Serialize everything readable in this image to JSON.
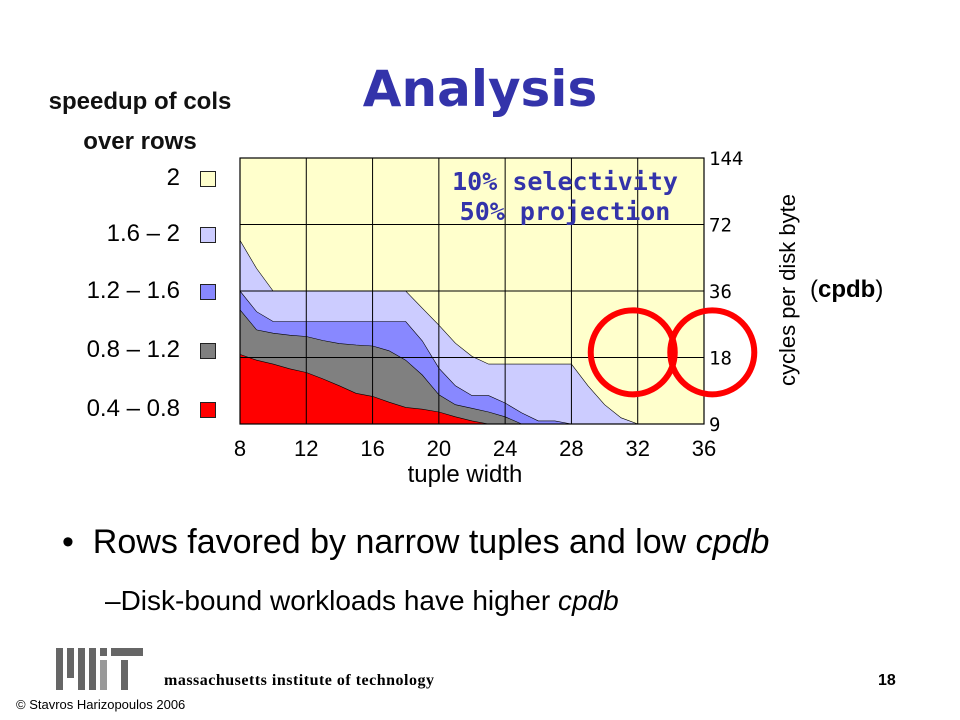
{
  "slide": {
    "title": "Analysis",
    "bullet1": "Rows favored by narrow tuples and low ",
    "bullet1_em": "cpdb",
    "bullet2_dash": "–",
    "bullet2": "Disk-bound workloads have higher ",
    "bullet2_em": "cpdb",
    "footer": "massachusetts institute of technology",
    "page_number": "18",
    "copyright": "© Stavros Harizopoulos 2006",
    "logo_text": "MIT"
  },
  "chart_data": {
    "type": "area",
    "title_line1": "10% selectivity",
    "title_line2": "50% projection",
    "xlabel": "tuple width",
    "ylabel": "cycles per disk byte",
    "ylabel_suffix_open": "(",
    "ylabel_suffix_bold": "cpdb",
    "ylabel_suffix_close": ")",
    "legend_title": "speedup of cols over rows",
    "x_ticks": [
      "8",
      "12",
      "16",
      "20",
      "24",
      "28",
      "32",
      "36"
    ],
    "y_ticks": [
      "144",
      "72",
      "36",
      "18",
      "9"
    ],
    "y_scale": "log2",
    "xlim": [
      8,
      36
    ],
    "ylim": [
      9,
      144
    ],
    "grid": true,
    "legend": [
      {
        "label": "2",
        "color": "#ffffcc"
      },
      {
        "label": "1.6 – 2",
        "color": "#ccccff"
      },
      {
        "label": "1.2 – 1.6",
        "color": "#8888ff"
      },
      {
        "label": "0.8 – 1.2",
        "color": "#808080"
      },
      {
        "label": "0.4 – 0.8",
        "color": "#ff0000"
      }
    ],
    "background_color": "#ffffcc",
    "x": [
      8,
      9,
      10,
      11,
      12,
      13,
      14,
      15,
      16,
      17,
      18,
      19,
      20,
      21,
      22,
      23,
      24,
      25,
      26,
      27,
      28,
      29,
      30,
      31,
      32
    ],
    "boundaries": [
      {
        "name": "0.4 – 0.8",
        "color": "#ff0000",
        "values": [
          18.6,
          17.5,
          16.8,
          16.0,
          15.4,
          14.4,
          13.4,
          12.4,
          12.0,
          11.3,
          10.7,
          10.5,
          10.2,
          9.7,
          9.3,
          9.0,
          9.0,
          9.0,
          9.0,
          9.0,
          9.0,
          9.0,
          9.0,
          9.0,
          9.0
        ]
      },
      {
        "name": "0.8 – 1.2",
        "color": "#808080",
        "values": [
          29.6,
          24.0,
          23.2,
          22.7,
          22.4,
          21.5,
          20.8,
          20.5,
          20.3,
          19.3,
          17.5,
          15.0,
          12.2,
          11.0,
          10.6,
          10.2,
          9.7,
          9.0,
          9.0,
          9.0,
          9.0,
          9.0,
          9.0,
          9.0,
          9.0
        ]
      },
      {
        "name": "1.2 – 1.6",
        "color": "#8888ff",
        "values": [
          36.0,
          29.0,
          26.2,
          26.2,
          26.2,
          26.2,
          26.2,
          26.2,
          26.2,
          26.2,
          26.2,
          21.4,
          16.1,
          13.4,
          12.1,
          12.1,
          11.2,
          10.1,
          9.3,
          9.3,
          9.0,
          9.0,
          9.0,
          9.0,
          9.0
        ]
      },
      {
        "name": "1.6 – 2",
        "color": "#ccccff",
        "values": [
          61.0,
          45.5,
          36.0,
          36.0,
          36.0,
          36.0,
          36.0,
          36.0,
          36.0,
          36.0,
          36.0,
          30.1,
          25.2,
          20.9,
          18.2,
          16.8,
          16.8,
          16.8,
          16.8,
          16.8,
          16.8,
          13.4,
          11.0,
          9.6,
          9.0
        ]
      }
    ],
    "circles": [
      {
        "x": 31.7,
        "y": 19
      },
      {
        "x": 36.5,
        "y": 19
      }
    ]
  }
}
